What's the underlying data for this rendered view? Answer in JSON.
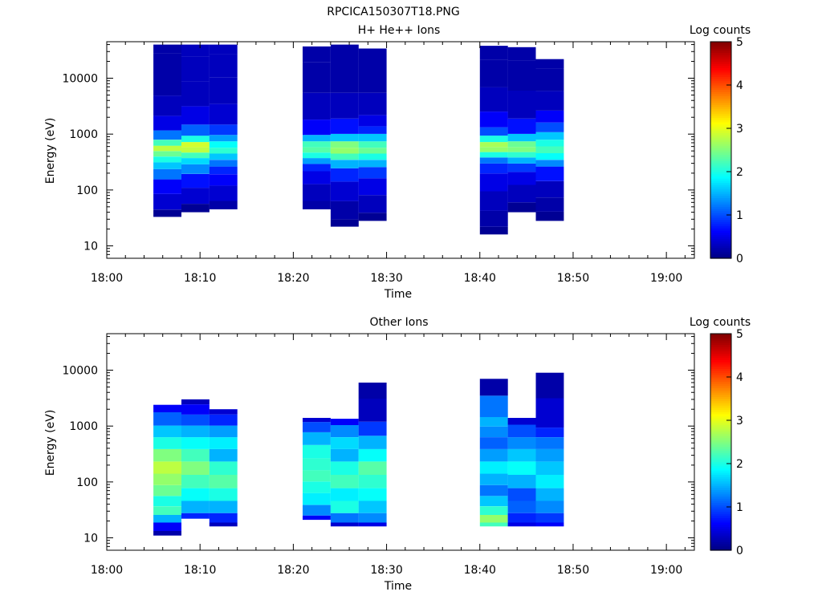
{
  "figure": {
    "filename": "RPCICA150307T18.PNG"
  },
  "colorbar": {
    "label": "Log counts",
    "ticks": [
      "0",
      "1",
      "2",
      "3",
      "4",
      "5"
    ],
    "colormap": "jet"
  },
  "chart_data": [
    {
      "type": "heatmap",
      "title": "H+ He++ Ions",
      "xlabel": "Time",
      "ylabel": "Energy (eV)",
      "x_tick_labels": [
        "18:00",
        "18:10",
        "18:20",
        "18:30",
        "18:40",
        "18:50",
        "19:00"
      ],
      "y_tick_labels": [
        "10",
        "100",
        "1000",
        "10000"
      ],
      "y_scale": "log",
      "ylim": [
        6,
        45000
      ],
      "xlim": [
        "18:00",
        "19:03"
      ],
      "color_scale": {
        "label": "Log counts",
        "range": [
          0,
          5
        ]
      },
      "columns": [
        {
          "start": "18:05",
          "end": "18:08",
          "emin": 33,
          "emax": 40000,
          "bands": [
            [
              33,
              0.1
            ],
            [
              60,
              0.4
            ],
            [
              120,
              0.6
            ],
            [
              200,
              1.2
            ],
            [
              280,
              1.6
            ],
            [
              350,
              2.0
            ],
            [
              450,
              2.4
            ],
            [
              550,
              2.8
            ],
            [
              700,
              2.2
            ],
            [
              900,
              1.2
            ],
            [
              1500,
              0.5
            ],
            [
              3000,
              0.3
            ],
            [
              8000,
              0.2
            ],
            [
              20000,
              0.2
            ],
            [
              40000,
              0.2
            ]
          ]
        },
        {
          "start": "18:08",
          "end": "18:11",
          "emin": 40,
          "emax": 40000,
          "bands": [
            [
              40,
              0.1
            ],
            [
              80,
              0.4
            ],
            [
              150,
              0.7
            ],
            [
              250,
              1.3
            ],
            [
              330,
              1.7
            ],
            [
              420,
              2.2
            ],
            [
              520,
              2.8
            ],
            [
              650,
              2.9
            ],
            [
              800,
              2.0
            ],
            [
              1100,
              1.1
            ],
            [
              2000,
              0.5
            ],
            [
              5000,
              0.3
            ],
            [
              15000,
              0.3
            ],
            [
              40000,
              0.3
            ]
          ]
        },
        {
          "start": "18:11",
          "end": "18:14",
          "emin": 45,
          "emax": 40000,
          "bands": [
            [
              45,
              0.2
            ],
            [
              90,
              0.4
            ],
            [
              160,
              0.6
            ],
            [
              230,
              0.8
            ],
            [
              300,
              1.2
            ],
            [
              400,
              1.6
            ],
            [
              500,
              2.1
            ],
            [
              650,
              1.9
            ],
            [
              850,
              1.4
            ],
            [
              1100,
              0.9
            ],
            [
              2000,
              0.4
            ],
            [
              6000,
              0.3
            ],
            [
              18000,
              0.3
            ],
            [
              40000,
              0.3
            ]
          ]
        },
        {
          "start": "18:21",
          "end": "18:24",
          "emin": 45,
          "emax": 37000,
          "bands": [
            [
              45,
              0.2
            ],
            [
              90,
              0.3
            ],
            [
              180,
              0.5
            ],
            [
              260,
              0.8
            ],
            [
              330,
              1.4
            ],
            [
              420,
              2.0
            ],
            [
              520,
              2.3
            ],
            [
              650,
              2.2
            ],
            [
              850,
              1.5
            ],
            [
              1100,
              0.6
            ],
            [
              3000,
              0.3
            ],
            [
              10000,
              0.2
            ],
            [
              37000,
              0.2
            ]
          ]
        },
        {
          "start": "18:24",
          "end": "18:27",
          "emin": 22,
          "emax": 40000,
          "bands": [
            [
              22,
              0.1
            ],
            [
              40,
              0.2
            ],
            [
              100,
              0.4
            ],
            [
              200,
              0.8
            ],
            [
              300,
              1.5
            ],
            [
              400,
              2.2
            ],
            [
              500,
              2.6
            ],
            [
              650,
              2.5
            ],
            [
              850,
              1.6
            ],
            [
              1200,
              0.7
            ],
            [
              3000,
              0.3
            ],
            [
              10000,
              0.2
            ],
            [
              40000,
              0.2
            ]
          ]
        },
        {
          "start": "18:27",
          "end": "18:30",
          "emin": 28,
          "emax": 34000,
          "bands": [
            [
              28,
              0.1
            ],
            [
              55,
              0.3
            ],
            [
              120,
              0.5
            ],
            [
              220,
              0.9
            ],
            [
              300,
              1.5
            ],
            [
              400,
              2.0
            ],
            [
              500,
              2.4
            ],
            [
              650,
              2.2
            ],
            [
              850,
              1.6
            ],
            [
              1200,
              0.8
            ],
            [
              1600,
              0.5
            ],
            [
              3000,
              0.3
            ],
            [
              10000,
              0.2
            ],
            [
              34000,
              0.2
            ]
          ]
        },
        {
          "start": "18:40",
          "end": "18:43",
          "emin": 16,
          "emax": 38000,
          "bands": [
            [
              16,
              0.1
            ],
            [
              30,
              0.2
            ],
            [
              60,
              0.3
            ],
            [
              150,
              0.5
            ],
            [
              260,
              0.8
            ],
            [
              340,
              1.2
            ],
            [
              430,
              2.0
            ],
            [
              530,
              2.6
            ],
            [
              650,
              2.7
            ],
            [
              800,
              2.0
            ],
            [
              1100,
              1.0
            ],
            [
              1600,
              0.6
            ],
            [
              4000,
              0.3
            ],
            [
              12000,
              0.2
            ],
            [
              38000,
              0.2
            ]
          ]
        },
        {
          "start": "18:43",
          "end": "18:46",
          "emin": 40,
          "emax": 36000,
          "bands": [
            [
              40,
              0.1
            ],
            [
              90,
              0.3
            ],
            [
              170,
              0.5
            ],
            [
              260,
              0.9
            ],
            [
              340,
              1.5
            ],
            [
              430,
              2.1
            ],
            [
              530,
              2.5
            ],
            [
              650,
              2.4
            ],
            [
              850,
              1.6
            ],
            [
              1200,
              0.7
            ],
            [
              3000,
              0.3
            ],
            [
              12000,
              0.2
            ],
            [
              36000,
              0.2
            ]
          ]
        },
        {
          "start": "18:46",
          "end": "18:49",
          "emin": 28,
          "emax": 22000,
          "bands": [
            [
              28,
              0.1
            ],
            [
              60,
              0.2
            ],
            [
              90,
              0.3
            ],
            [
              230,
              0.7
            ],
            [
              300,
              1.3
            ],
            [
              400,
              1.9
            ],
            [
              520,
              2.2
            ],
            [
              700,
              2.0
            ],
            [
              900,
              1.6
            ],
            [
              1300,
              1.0
            ],
            [
              2000,
              0.6
            ],
            [
              3500,
              0.3
            ],
            [
              10000,
              0.2
            ],
            [
              22000,
              0.2
            ]
          ]
        }
      ]
    },
    {
      "type": "heatmap",
      "title": "Other Ions",
      "xlabel": "Time",
      "ylabel": "Energy (eV)",
      "x_tick_labels": [
        "18:00",
        "18:10",
        "18:20",
        "18:30",
        "18:40",
        "18:50",
        "19:00"
      ],
      "y_tick_labels": [
        "10",
        "100",
        "1000",
        "10000"
      ],
      "y_scale": "log",
      "ylim": [
        6,
        45000
      ],
      "xlim": [
        "18:00",
        "19:03"
      ],
      "color_scale": {
        "label": "Log counts",
        "range": [
          0,
          5
        ]
      },
      "columns": [
        {
          "start": "18:05",
          "end": "18:08",
          "emin": 11,
          "emax": 2400,
          "bands": [
            [
              11,
              0.2
            ],
            [
              16,
              0.6
            ],
            [
              22,
              1.5
            ],
            [
              30,
              2.2
            ],
            [
              45,
              2.0
            ],
            [
              70,
              2.4
            ],
            [
              110,
              2.6
            ],
            [
              180,
              2.8
            ],
            [
              300,
              2.5
            ],
            [
              500,
              2.0
            ],
            [
              800,
              1.6
            ],
            [
              1300,
              1.1
            ],
            [
              2400,
              0.6
            ]
          ]
        },
        {
          "start": "18:08",
          "end": "18:11",
          "emin": 22,
          "emax": 3000,
          "bands": [
            [
              22,
              0.8
            ],
            [
              35,
              1.5
            ],
            [
              60,
              1.9
            ],
            [
              100,
              2.2
            ],
            [
              180,
              2.5
            ],
            [
              300,
              2.2
            ],
            [
              500,
              1.9
            ],
            [
              800,
              1.5
            ],
            [
              1300,
              1.0
            ],
            [
              2000,
              0.6
            ],
            [
              3000,
              0.3
            ]
          ]
        },
        {
          "start": "18:11",
          "end": "18:14",
          "emin": 16,
          "emax": 2000,
          "bands": [
            [
              16,
              0.3
            ],
            [
              22,
              0.8
            ],
            [
              35,
              1.5
            ],
            [
              60,
              2.0
            ],
            [
              100,
              2.3
            ],
            [
              180,
              2.1
            ],
            [
              300,
              1.5
            ],
            [
              500,
              1.8
            ],
            [
              800,
              1.4
            ],
            [
              1300,
              0.8
            ],
            [
              2000,
              0.4
            ]
          ]
        },
        {
          "start": "18:21",
          "end": "18:24",
          "emin": 21,
          "emax": 1400,
          "bands": [
            [
              21,
              0.6
            ],
            [
              30,
              1.3
            ],
            [
              50,
              1.8
            ],
            [
              80,
              2.0
            ],
            [
              130,
              2.2
            ],
            [
              200,
              2.1
            ],
            [
              350,
              2.0
            ],
            [
              600,
              1.5
            ],
            [
              1000,
              1.0
            ],
            [
              1400,
              0.4
            ]
          ]
        },
        {
          "start": "18:24",
          "end": "18:27",
          "emin": 16,
          "emax": 1350,
          "bands": [
            [
              16,
              0.4
            ],
            [
              22,
              1.2
            ],
            [
              35,
              2.0
            ],
            [
              60,
              1.8
            ],
            [
              100,
              2.2
            ],
            [
              180,
              2.0
            ],
            [
              300,
              1.5
            ],
            [
              500,
              1.7
            ],
            [
              800,
              1.3
            ],
            [
              1350,
              0.6
            ]
          ]
        },
        {
          "start": "18:27",
          "end": "18:30",
          "emin": 16,
          "emax": 6000,
          "bands": [
            [
              16,
              0.5
            ],
            [
              22,
              1.3
            ],
            [
              35,
              1.6
            ],
            [
              60,
              1.9
            ],
            [
              100,
              2.1
            ],
            [
              180,
              2.3
            ],
            [
              300,
              1.9
            ],
            [
              500,
              1.5
            ],
            [
              900,
              0.9
            ],
            [
              1600,
              0.3
            ],
            [
              6000,
              0.2
            ]
          ]
        },
        {
          "start": "18:40",
          "end": "18:43",
          "emin": 16,
          "emax": 7000,
          "bands": [
            [
              16,
              2.2
            ],
            [
              22,
              2.6
            ],
            [
              30,
              2.1
            ],
            [
              45,
              1.6
            ],
            [
              70,
              1.2
            ],
            [
              110,
              1.5
            ],
            [
              180,
              1.8
            ],
            [
              300,
              1.4
            ],
            [
              500,
              1.1
            ],
            [
              800,
              1.3
            ],
            [
              1200,
              1.5
            ],
            [
              1750,
              1.2
            ],
            [
              7000,
              0.2
            ]
          ]
        },
        {
          "start": "18:43",
          "end": "18:46",
          "emin": 16,
          "emax": 1400,
          "bands": [
            [
              16,
              0.5
            ],
            [
              22,
              0.8
            ],
            [
              35,
              1.1
            ],
            [
              60,
              1.0
            ],
            [
              100,
              1.5
            ],
            [
              180,
              1.9
            ],
            [
              300,
              1.6
            ],
            [
              500,
              1.3
            ],
            [
              800,
              1.0
            ],
            [
              1400,
              0.4
            ]
          ]
        },
        {
          "start": "18:46",
          "end": "18:49",
          "emin": 16,
          "emax": 9000,
          "bands": [
            [
              16,
              0.6
            ],
            [
              22,
              0.9
            ],
            [
              35,
              1.3
            ],
            [
              60,
              1.5
            ],
            [
              100,
              1.8
            ],
            [
              180,
              1.6
            ],
            [
              300,
              1.4
            ],
            [
              500,
              1.2
            ],
            [
              800,
              0.8
            ],
            [
              1100,
              0.4
            ],
            [
              9000,
              0.2
            ]
          ]
        }
      ]
    }
  ]
}
